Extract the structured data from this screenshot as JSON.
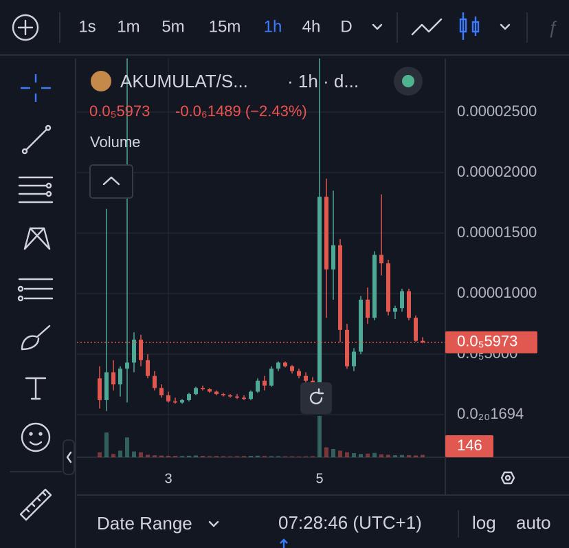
{
  "toolbar": {
    "intervals": [
      "1s",
      "1m",
      "5m",
      "15m",
      "1h",
      "4h",
      "D"
    ]
  },
  "header": {
    "symbol": "AKUMULAT/S...",
    "interval": "· 1h · d...",
    "change": "-0.0₆1489 (−2.43%)",
    "study": "Volume"
  },
  "chart_data": {
    "type": "candlestick",
    "categories": [
      null,
      null,
      null,
      null,
      null,
      null,
      null,
      null,
      null,
      null,
      "3",
      null,
      null,
      null,
      null,
      null,
      null,
      null,
      null,
      null,
      null,
      null,
      null,
      null,
      null,
      null,
      null,
      null,
      null,
      null,
      null,
      null,
      "5",
      null,
      null,
      null,
      null,
      null,
      null,
      null,
      null,
      null,
      null,
      null,
      null,
      null,
      null,
      null
    ],
    "open": [
      3e-06,
      1.2e-06,
      3.5e-06,
      2.5e-06,
      3.8e-06,
      4.3e-06,
      6.2e-06,
      4.5e-06,
      3.2e-06,
      2.2e-06,
      1.6e-06,
      1.1e-06,
      1e-06,
      1.2e-06,
      1.7e-06,
      2.2e-06,
      2.1e-06,
      1.9e-06,
      1.7e-06,
      1.6e-06,
      1.5e-06,
      1.4e-06,
      1.3e-06,
      1.9e-06,
      2.8e-06,
      2.4e-06,
      3.8e-06,
      4.3e-06,
      4e-06,
      3.6e-06,
      3.2e-06,
      2.8e-06,
      2.5e-06,
      1.8e-05,
      1.2e-05,
      1.4e-05,
      7e-06,
      4e-06,
      5.2e-06,
      9.5e-06,
      8e-06,
      1.32e-05,
      1.25e-05,
      8.5e-06,
      8.8e-06,
      1.02e-05,
      8e-06,
      6.1e-06
    ],
    "high": [
      4e-06,
      1.7e-05,
      4.5e-06,
      4e-06,
      2.95e-05,
      6.8e-06,
      6.6e-06,
      5e-06,
      3.6e-06,
      2.5e-06,
      1.9e-06,
      1.4e-06,
      1.3e-06,
      1.8e-06,
      2.3e-06,
      2.4e-06,
      2.2e-06,
      2e-06,
      1.8e-06,
      1.7e-06,
      1.7e-06,
      1.6e-06,
      2e-06,
      3e-06,
      3.2e-06,
      4e-06,
      4.4e-06,
      4.4e-06,
      4.1e-06,
      3.8e-06,
      3.5e-06,
      3.1e-06,
      2.98e-05,
      1.95e-05,
      1.85e-05,
      1.45e-05,
      7.5e-06,
      5.5e-06,
      9.8e-06,
      1.05e-05,
      1.35e-05,
      1.82e-05,
      1.28e-05,
      9e-06,
      1.04e-05,
      1.04e-05,
      8.2e-06,
      6.4e-06
    ],
    "low": [
      5e-07,
      3e-07,
      2e-06,
      1.5e-06,
      1e-06,
      3.5e-06,
      4e-06,
      3e-06,
      2e-06,
      1.4e-06,
      1e-06,
      9e-07,
      9e-07,
      1.1e-06,
      1.6e-06,
      2e-06,
      1.8e-06,
      1.6e-06,
      1.5e-06,
      1.4e-06,
      1.3e-06,
      1.2e-06,
      1.2e-06,
      1.8e-06,
      2e-06,
      2.3e-06,
      3.6e-06,
      3.9e-06,
      3.4e-06,
      3e-06,
      2.6e-06,
      2.3e-06,
      2.2e-06,
      8e-06,
      9.5e-06,
      6e-06,
      3.8e-06,
      3.6e-06,
      5e-06,
      7.5e-06,
      7.8e-06,
      1.15e-05,
      8.2e-06,
      7.9e-06,
      8.5e-06,
      7.8e-06,
      6e-06,
      5.9e-06
    ],
    "close": [
      1.2e-06,
      3.5e-06,
      2.5e-06,
      3.8e-06,
      4.3e-06,
      6.2e-06,
      4.5e-06,
      3.2e-06,
      2.2e-06,
      1.6e-06,
      1.1e-06,
      1e-06,
      1.2e-06,
      1.7e-06,
      2.2e-06,
      2.1e-06,
      1.9e-06,
      1.7e-06,
      1.6e-06,
      1.5e-06,
      1.4e-06,
      1.3e-06,
      1.9e-06,
      2.8e-06,
      2.4e-06,
      3.8e-06,
      4.3e-06,
      4e-06,
      3.6e-06,
      3.2e-06,
      2.8e-06,
      2.5e-06,
      1.8e-05,
      1.2e-05,
      1.4e-05,
      7e-06,
      4e-06,
      5.2e-06,
      9.5e-06,
      8e-06,
      1.32e-05,
      1.25e-05,
      8.5e-06,
      8.8e-06,
      1.02e-05,
      8e-06,
      6.1e-06,
      5.973e-06
    ],
    "last_label": "0.0₅5973",
    "volume": [
      300,
      1500,
      200,
      400,
      1200,
      350,
      300,
      150,
      120,
      100,
      90,
      80,
      70,
      90,
      110,
      80,
      60,
      70,
      60,
      50,
      60,
      70,
      80,
      90,
      70,
      60,
      60,
      50,
      50,
      40,
      50,
      60,
      2500,
      600,
      500,
      400,
      300,
      250,
      200,
      220,
      260,
      180,
      150,
      120,
      140,
      130,
      110,
      146
    ],
    "ylim": [
      -3.52e-06,
      2.943e-05
    ],
    "yticks": [
      {
        "value": 2.5e-05,
        "label": "0.00002500"
      },
      {
        "value": 2e-05,
        "label": "0.00002000"
      },
      {
        "value": 1.5e-05,
        "label": "0.00001500"
      },
      {
        "value": 1e-05,
        "label": "0.00001000"
      },
      {
        "value": 5e-06,
        "label": "0.0₅5000"
      },
      {
        "value": 1.694e-21,
        "label": "0.0₂₀1694"
      }
    ],
    "grid": true,
    "colors": {
      "up": "#4fa896",
      "down": "#e0584f"
    }
  },
  "footer": {
    "date_range": "Date Range",
    "time": "07:28:46 (UTC+1)",
    "log": "log",
    "auto": "auto"
  }
}
